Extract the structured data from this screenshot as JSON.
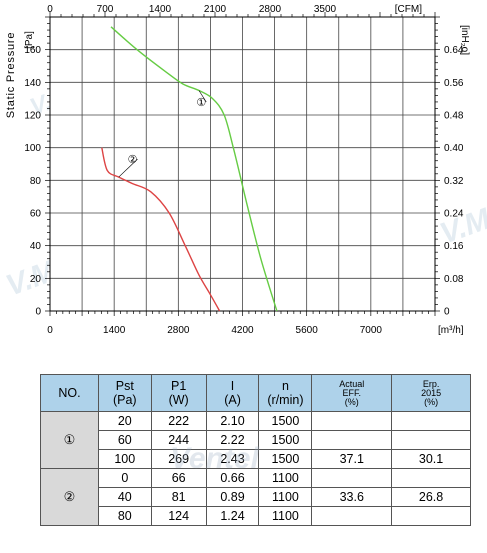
{
  "chart_data": {
    "type": "line",
    "xlabel_top_unit": "[CFM]",
    "xlabel_bottom_unit": "[m³/h]",
    "ylabel_left": "Static Pressure",
    "ylabel_left_unit": "[Pa]",
    "ylabel_right_unit": "[inH₂o]",
    "xlim_m3h": [
      0,
      8400
    ],
    "xlim_cfm": [
      0,
      4900
    ],
    "ylim_pa": [
      0,
      180
    ],
    "ylim_inh2o": [
      0,
      0.72
    ],
    "x_ticks_bottom": [
      "0",
      "1400",
      "2800",
      "4200",
      "5600",
      "7000"
    ],
    "x_ticks_bottom_values": [
      0,
      1400,
      2800,
      4200,
      5600,
      7000
    ],
    "x_ticks_top": [
      "0",
      "700",
      "1400",
      "2100",
      "2800",
      "3500"
    ],
    "x_ticks_top_values": [
      0,
      700,
      1400,
      2100,
      2800,
      3500
    ],
    "y_ticks_left": [
      "0",
      "20",
      "40",
      "60",
      "80",
      "100",
      "120",
      "140",
      "160"
    ],
    "y_ticks_left_values": [
      0,
      20,
      40,
      60,
      80,
      100,
      120,
      140,
      160
    ],
    "y_ticks_right": [
      "0",
      "0.08",
      "0.16",
      "0.24",
      "0.32",
      "0.40",
      "0.48",
      "0.56",
      "0.64"
    ],
    "y_ticks_right_values": [
      0,
      0.08,
      0.16,
      0.24,
      0.32,
      0.4,
      0.48,
      0.56,
      0.64
    ],
    "grid": true,
    "series": [
      {
        "label": "①",
        "color": "#66cc44",
        "x": [
          1330,
          1900,
          2500,
          2900,
          3250,
          3550,
          3800,
          4000,
          4300,
          4600,
          4950
        ],
        "y": [
          174,
          160,
          147,
          139,
          135,
          130,
          120,
          100,
          65,
          32,
          0
        ],
        "label_at": [
          3300,
          128
        ]
      },
      {
        "label": "②",
        "color": "#dd4444",
        "x": [
          1130,
          1250,
          1500,
          1800,
          2200,
          2600,
          2950,
          3250,
          3500,
          3700
        ],
        "y": [
          100,
          86,
          82,
          78,
          73,
          60,
          40,
          22,
          10,
          0
        ],
        "label_at": [
          1800,
          93
        ]
      }
    ]
  },
  "table": {
    "headers": [
      {
        "line1": "NO.",
        "line2": "",
        "line3": ""
      },
      {
        "line1": "Pst",
        "line2": "(Pa)",
        "line3": ""
      },
      {
        "line1": "P1",
        "line2": "(W)",
        "line3": ""
      },
      {
        "line1": "I",
        "line2": "(A)",
        "line3": ""
      },
      {
        "line1": "n",
        "line2": "(r/min)",
        "line3": ""
      },
      {
        "line1": "Actual",
        "line2": "EFF.",
        "line3": "(%)"
      },
      {
        "line1": "Erp.",
        "line2": "2015",
        "line3": "(%)"
      }
    ],
    "groups": [
      {
        "no": "①",
        "rows": [
          {
            "pst": "20",
            "p1": "222",
            "i": "2.10",
            "n": "1500",
            "eff": "",
            "erp": ""
          },
          {
            "pst": "60",
            "p1": "244",
            "i": "2.22",
            "n": "1500",
            "eff": "",
            "erp": ""
          },
          {
            "pst": "100",
            "p1": "269",
            "i": "2.43",
            "n": "1500",
            "eff": "37.1",
            "erp": "30.1"
          }
        ]
      },
      {
        "no": "②",
        "rows": [
          {
            "pst": "0",
            "p1": "66",
            "i": "0.66",
            "n": "1100",
            "eff": "",
            "erp": ""
          },
          {
            "pst": "40",
            "p1": "81",
            "i": "0.89",
            "n": "1100",
            "eff": "33.6",
            "erp": "26.8"
          },
          {
            "pst": "80",
            "p1": "124",
            "i": "1.24",
            "n": "1100",
            "eff": "",
            "erp": ""
          }
        ]
      }
    ]
  },
  "watermark": {
    "brand": "Ventel",
    "mark": "V.M"
  }
}
